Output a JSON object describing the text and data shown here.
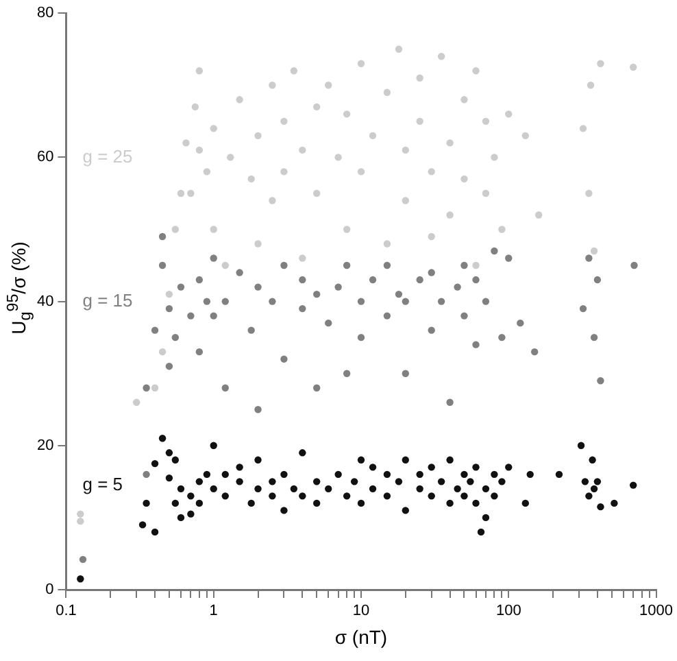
{
  "chart_data": {
    "type": "scatter",
    "xlabel": "σ (nT)",
    "ylabel": "U$_{g}$$^{95}$/σ (%)",
    "log": "x",
    "grid": false,
    "legend": false,
    "marker": "circle",
    "xlim": [
      0.1,
      1000
    ],
    "ylim": [
      0,
      80
    ],
    "xticks": [
      0.1,
      {
        "value": 0.2,
        "label": null
      },
      {
        "value": 0.3,
        "label": null
      },
      {
        "value": 0.4,
        "label": null
      },
      {
        "value": 0.5,
        "label": null
      },
      {
        "value": 0.6,
        "label": null
      },
      {
        "value": 0.7,
        "label": null
      },
      {
        "value": 0.8,
        "label": null
      },
      {
        "value": 0.9,
        "label": null
      },
      1,
      {
        "value": 2,
        "label": null
      },
      {
        "value": 3,
        "label": null
      },
      {
        "value": 4,
        "label": null
      },
      {
        "value": 5,
        "label": null
      },
      {
        "value": 6,
        "label": null
      },
      {
        "value": 7,
        "label": null
      },
      {
        "value": 8,
        "label": null
      },
      {
        "value": 9,
        "label": null
      },
      10,
      {
        "value": 20,
        "label": null
      },
      {
        "value": 30,
        "label": null
      },
      {
        "value": 40,
        "label": null
      },
      {
        "value": 50,
        "label": null
      },
      {
        "value": 60,
        "label": null
      },
      {
        "value": 70,
        "label": null
      },
      {
        "value": 80,
        "label": null
      },
      {
        "value": 90,
        "label": null
      },
      100,
      {
        "value": 200,
        "label": null
      },
      {
        "value": 300,
        "label": null
      },
      {
        "value": 400,
        "label": null
      },
      {
        "value": 500,
        "label": null
      },
      {
        "value": 600,
        "label": null
      },
      {
        "value": 700,
        "label": null
      },
      {
        "value": 800,
        "label": null
      },
      {
        "value": 900,
        "label": null
      },
      1000
    ],
    "yticks": [
      0,
      20,
      40,
      60,
      80
    ],
    "series": [
      {
        "name": "g = 25",
        "color": "#cccccc",
        "x": [
          0.125,
          0.125,
          0.3,
          0.4,
          0.45,
          0.5,
          0.55,
          0.6,
          0.65,
          0.7,
          0.75,
          0.8,
          0.8,
          0.9,
          1,
          1,
          1.2,
          1.3,
          1.5,
          1.8,
          2,
          2,
          2.5,
          2.5,
          3,
          3,
          3.5,
          4,
          4,
          5,
          5,
          6,
          7,
          8,
          8,
          10,
          10,
          12,
          15,
          15,
          18,
          20,
          20,
          25,
          25,
          30,
          30,
          35,
          40,
          40,
          50,
          50,
          60,
          60,
          70,
          70,
          80,
          90,
          100,
          130,
          160,
          320,
          350,
          360,
          380,
          420,
          700
        ],
        "values": [
          9.5,
          10.5,
          26,
          28,
          33,
          41,
          50,
          55,
          62,
          55,
          67,
          61,
          72,
          58,
          64,
          50,
          45,
          60,
          68,
          57,
          63,
          48,
          70,
          54,
          65,
          58,
          72,
          61,
          46,
          67,
          55,
          70,
          60,
          50,
          66,
          73,
          58,
          63,
          69,
          48,
          75,
          61,
          54,
          71,
          65,
          58,
          49,
          74,
          62,
          52,
          68,
          57,
          72,
          45,
          65,
          55,
          60,
          50,
          66,
          63,
          52,
          64,
          55,
          70,
          47,
          73,
          72.5
        ]
      },
      {
        "name": "g = 15",
        "color": "#808080",
        "x": [
          0.13,
          0.35,
          0.35,
          0.4,
          0.45,
          0.45,
          0.5,
          0.5,
          0.55,
          0.6,
          0.7,
          0.8,
          0.8,
          0.9,
          1,
          1,
          1.2,
          1.2,
          1.5,
          1.8,
          2,
          2,
          2.5,
          3,
          3,
          4,
          4,
          5,
          5,
          6,
          7,
          8,
          8,
          10,
          10,
          12,
          15,
          15,
          18,
          20,
          20,
          25,
          30,
          30,
          35,
          40,
          45,
          50,
          50,
          60,
          60,
          70,
          80,
          90,
          100,
          120,
          150,
          320,
          350,
          380,
          400,
          420,
          710
        ],
        "values": [
          4.2,
          16,
          28,
          36,
          45,
          49,
          31,
          39,
          35,
          42,
          38,
          33,
          43,
          40,
          38,
          46,
          28,
          40,
          44,
          36,
          42,
          25,
          40,
          45,
          32,
          39,
          43,
          41,
          28,
          37,
          42,
          30,
          45,
          40,
          35,
          43,
          38,
          45,
          41,
          30,
          40,
          43,
          36,
          44,
          40,
          26,
          42,
          38,
          45,
          34,
          43,
          40,
          47,
          35,
          46,
          37,
          33,
          39,
          46,
          35,
          43,
          29,
          45
        ]
      },
      {
        "name": "g = 5",
        "color": "#111111",
        "x": [
          0.125,
          0.33,
          0.35,
          0.4,
          0.4,
          0.45,
          0.5,
          0.5,
          0.55,
          0.55,
          0.6,
          0.6,
          0.7,
          0.7,
          0.8,
          0.8,
          0.9,
          1,
          1,
          1.2,
          1.2,
          1.5,
          1.5,
          1.8,
          2,
          2,
          2.5,
          2.5,
          3,
          3,
          3.5,
          4,
          4,
          5,
          5,
          6,
          7,
          8,
          9,
          10,
          10,
          12,
          12,
          15,
          15,
          18,
          20,
          20,
          25,
          25,
          30,
          30,
          35,
          40,
          40,
          45,
          50,
          50,
          55,
          60,
          60,
          65,
          70,
          70,
          80,
          80,
          90,
          100,
          130,
          140,
          220,
          310,
          330,
          350,
          370,
          380,
          400,
          420,
          520,
          700
        ],
        "values": [
          1.5,
          9,
          12,
          8,
          17.5,
          21,
          15.5,
          19,
          18,
          12,
          14,
          10,
          13,
          10.5,
          15,
          12,
          16,
          14,
          20,
          13,
          16,
          15,
          17,
          12,
          14,
          18,
          13,
          15,
          16,
          11,
          14,
          19,
          13,
          15,
          12,
          14,
          16,
          13,
          15,
          18,
          12,
          14,
          17,
          13,
          16,
          15,
          11,
          18,
          14,
          16,
          13,
          17,
          15,
          12,
          18,
          14,
          16,
          13,
          15,
          12,
          17,
          8,
          14,
          10,
          16,
          13,
          15,
          17,
          12,
          16,
          16,
          20,
          15,
          13,
          18,
          14,
          15,
          11.5,
          12,
          14.5
        ]
      }
    ]
  }
}
